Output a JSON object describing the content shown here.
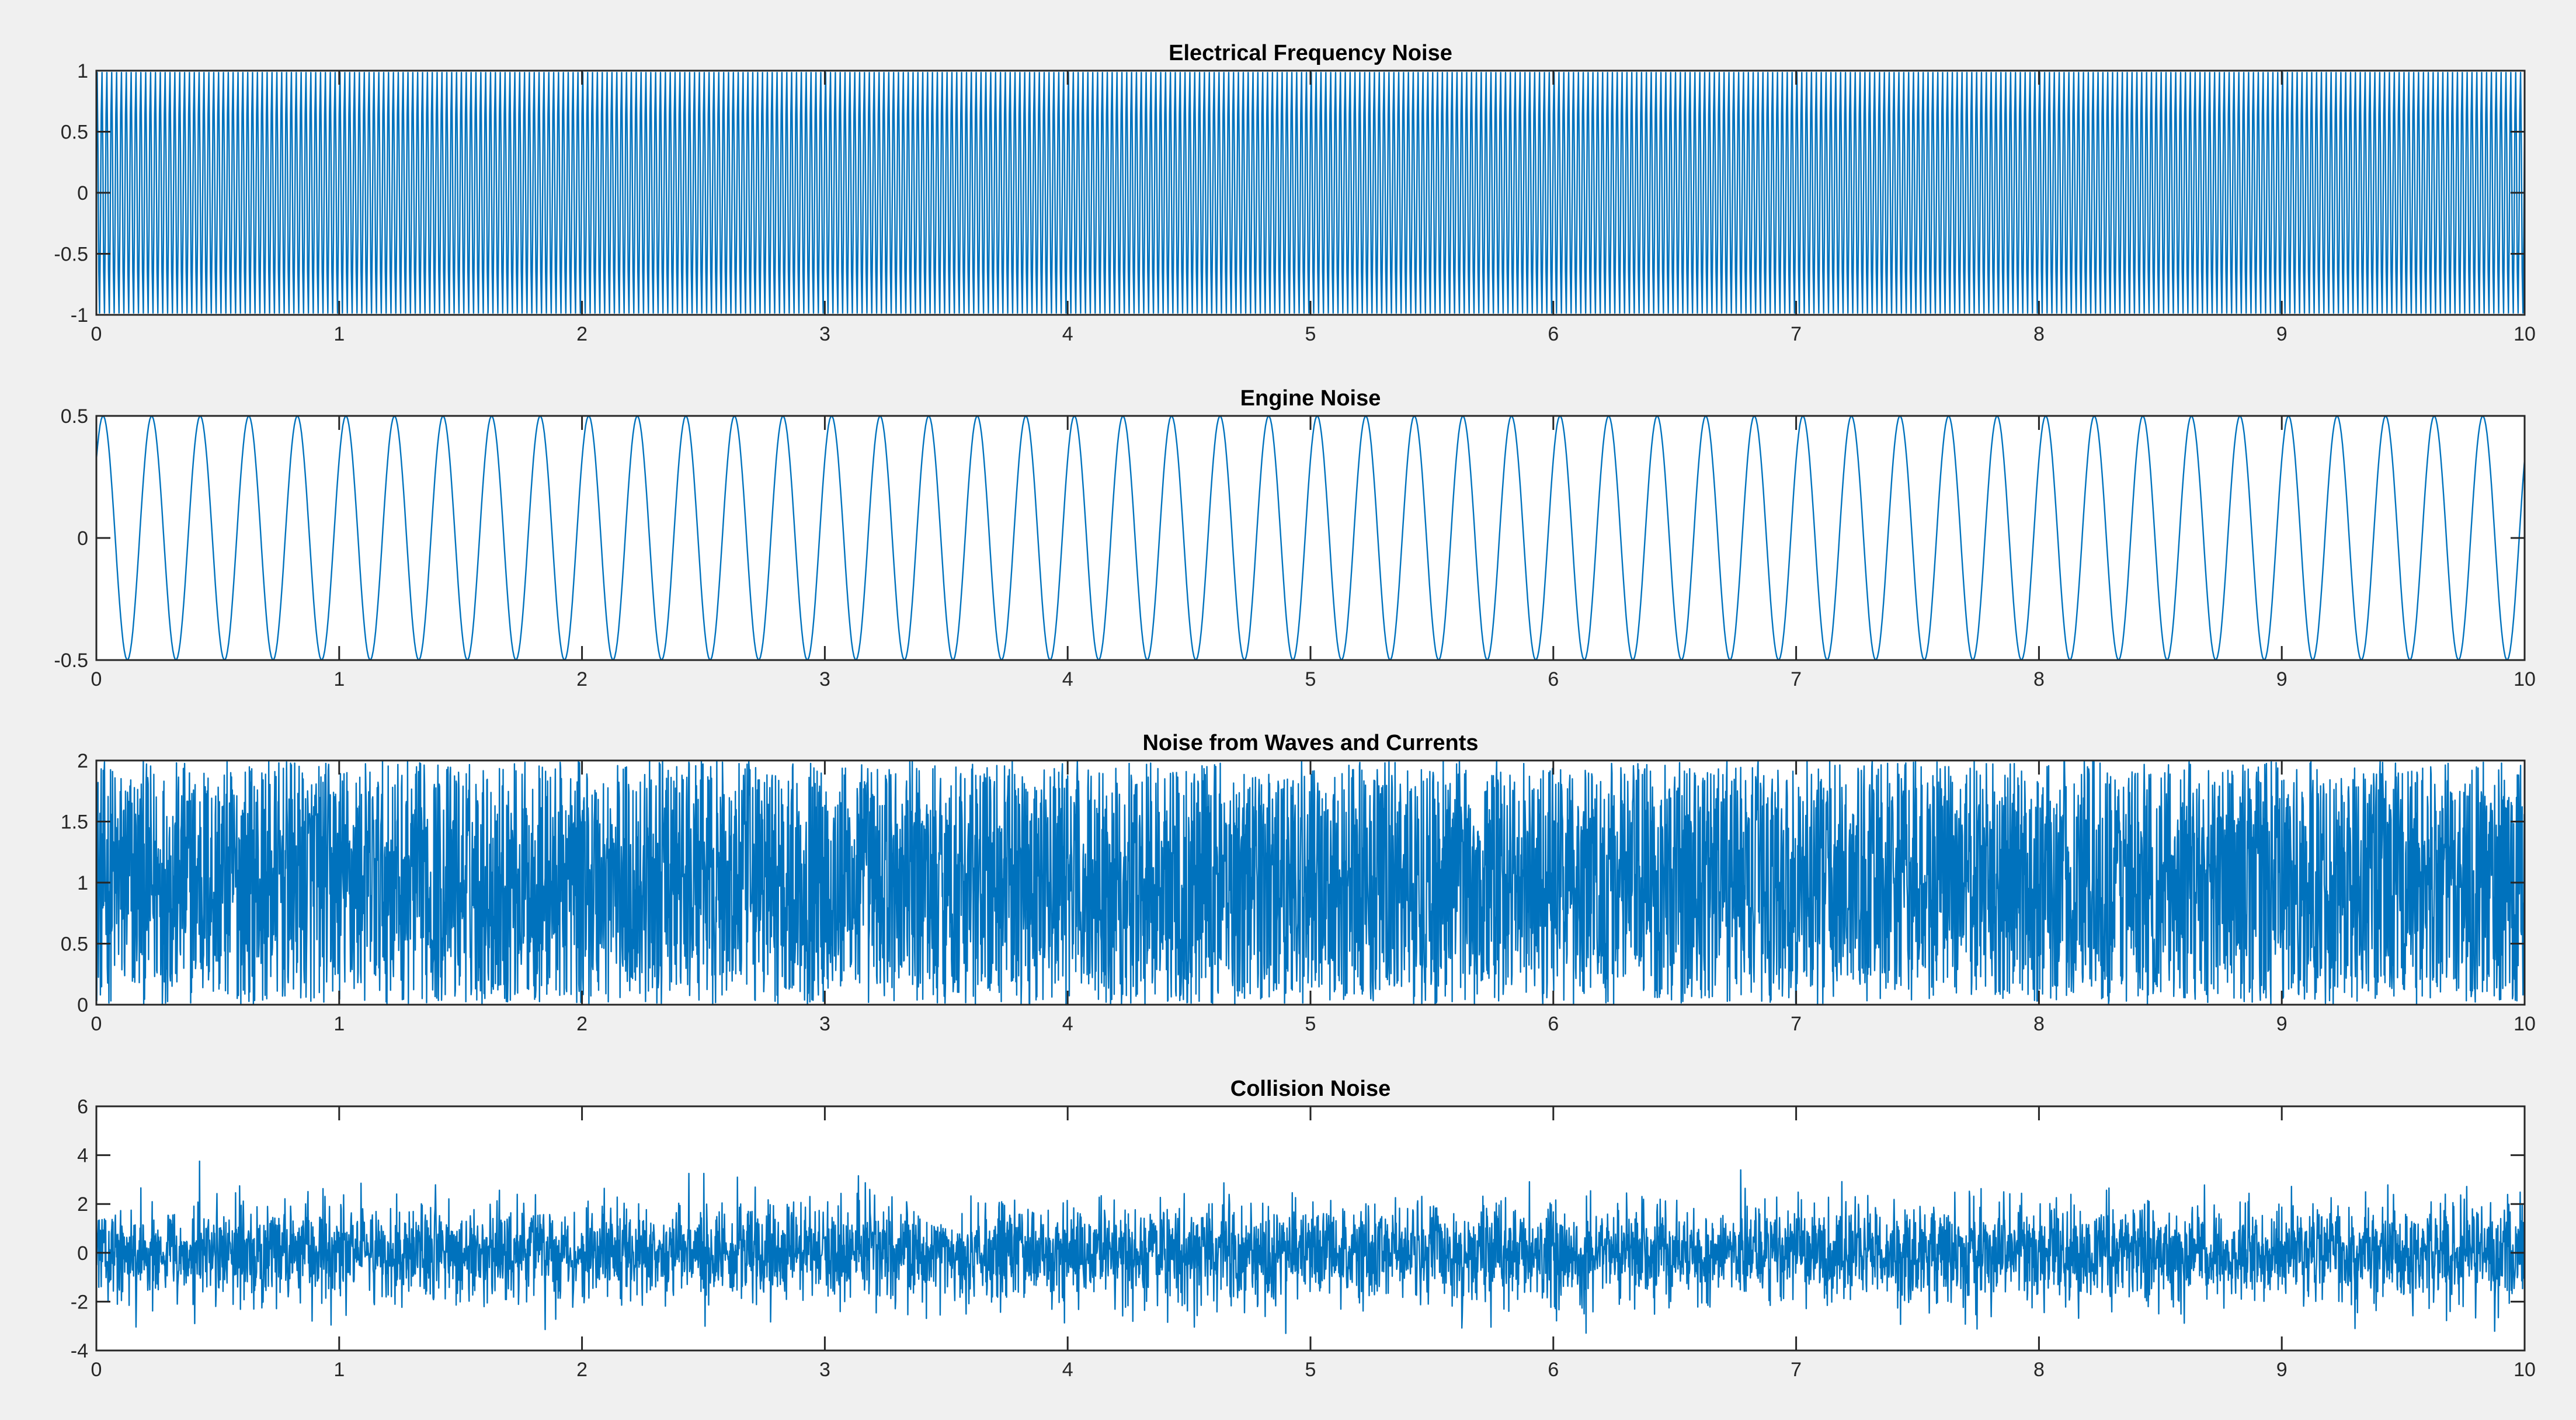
{
  "figure": {
    "background": "#f0f0f0",
    "axes_background": "#ffffff",
    "axes_color": "#262626",
    "line_color": "#0072bd"
  },
  "chart_data": [
    {
      "type": "line",
      "title": "Electrical Frequency Noise",
      "xlabel": "",
      "ylabel": "",
      "xlim": [
        0,
        10
      ],
      "ylim": [
        -1,
        1
      ],
      "x_ticks": [
        "0",
        "1",
        "2",
        "3",
        "4",
        "5",
        "6",
        "7",
        "8",
        "9",
        "10"
      ],
      "y_ticks": [
        "1",
        "0.5",
        "0",
        "-0.5",
        "-1"
      ],
      "series": [
        {
          "kind": "sine",
          "amplitude": 1,
          "offset": 0,
          "frequency_hz": 50,
          "x_range": [
            0,
            10
          ]
        }
      ],
      "grid": false
    },
    {
      "type": "line",
      "title": "Engine Noise",
      "xlabel": "",
      "ylabel": "",
      "xlim": [
        0,
        10
      ],
      "ylim": [
        -0.5,
        0.5
      ],
      "x_ticks": [
        "0",
        "1",
        "2",
        "3",
        "4",
        "5",
        "6",
        "7",
        "8",
        "9",
        "10"
      ],
      "y_ticks": [
        "0.5",
        "0",
        "-0.5"
      ],
      "series": [
        {
          "kind": "sine",
          "amplitude": 0.5,
          "offset": 0,
          "frequency_hz": 5,
          "x_range": [
            0,
            10
          ]
        }
      ],
      "grid": false
    },
    {
      "type": "line",
      "title": "Noise from Waves and Currents",
      "xlabel": "",
      "ylabel": "",
      "xlim": [
        0,
        10
      ],
      "ylim": [
        0,
        2
      ],
      "x_ticks": [
        "0",
        "1",
        "2",
        "3",
        "4",
        "5",
        "6",
        "7",
        "8",
        "9",
        "10"
      ],
      "y_ticks": [
        "2",
        "1.5",
        "1",
        "0.5",
        "0"
      ],
      "series": [
        {
          "kind": "uniform_noise",
          "min": 0,
          "max": 2,
          "mean": 1,
          "x_range": [
            0,
            10
          ]
        }
      ],
      "grid": false
    },
    {
      "type": "line",
      "title": "Collision Noise",
      "xlabel": "",
      "ylabel": "",
      "xlim": [
        0,
        10
      ],
      "ylim": [
        -4,
        6
      ],
      "x_ticks": [
        "0",
        "1",
        "2",
        "3",
        "4",
        "5",
        "6",
        "7",
        "8",
        "9",
        "10"
      ],
      "y_ticks": [
        "6",
        "4",
        "2",
        "0",
        "-2",
        "-4"
      ],
      "series": [
        {
          "kind": "gaussian_noise",
          "mean": 0,
          "std": 1,
          "peak_max": 4.2,
          "peak_min": -3.3,
          "x_range": [
            0,
            10
          ]
        }
      ],
      "grid": false
    }
  ]
}
